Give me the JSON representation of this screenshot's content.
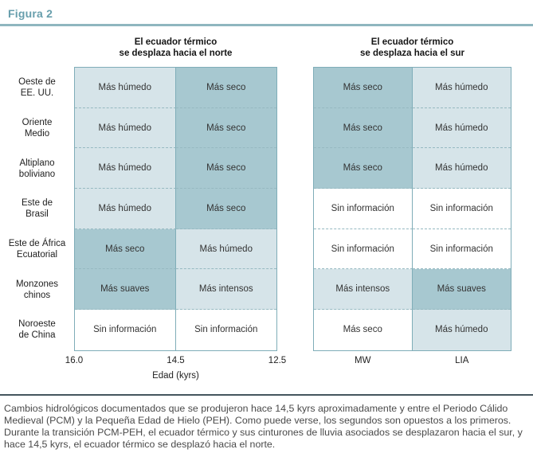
{
  "figure": {
    "label": "Figura 2",
    "caption": "Cambios hidrológicos documentados que se produjeron hace 14,5 kyrs aproximadamente y entre el Periodo Cálido Medieval (PCM) y la Pequeña Edad de Hielo (PEH). Como puede verse, los segundos son opuestos a los primeros. Durante la transición PCM-PEH, el ecuador térmico y sus cinturones de lluvia asociados se desplazaron hacia el sur, y hace 14,5 kyrs, el ecuador térmico se desplazó hacia el norte."
  },
  "panels": {
    "north": {
      "title_line1": "El ecuador térmico",
      "title_line2": "se desplaza hacia el norte",
      "ticks": [
        "16.0",
        "14.5",
        "12.5"
      ],
      "axis_label": "Edad (kyrs)"
    },
    "south": {
      "title_line1": "El ecuador térmico",
      "title_line2": "se desplaza hacia el sur",
      "ticks": [
        "MW",
        "LIA"
      ]
    }
  },
  "rows": [
    {
      "label1": "Oeste de",
      "label2": "EE. UU.",
      "north": [
        {
          "label": "Más húmedo",
          "shade": "light"
        },
        {
          "label": "Más seco",
          "shade": "dark"
        }
      ],
      "south": [
        {
          "label": "Más seco",
          "shade": "dark"
        },
        {
          "label": "Más húmedo",
          "shade": "light"
        }
      ]
    },
    {
      "label1": "Oriente",
      "label2": "Medio",
      "north": [
        {
          "label": "Más húmedo",
          "shade": "light"
        },
        {
          "label": "Más seco",
          "shade": "dark"
        }
      ],
      "south": [
        {
          "label": "Más seco",
          "shade": "dark"
        },
        {
          "label": "Más húmedo",
          "shade": "light"
        }
      ]
    },
    {
      "label1": "Altiplano",
      "label2": "boliviano",
      "north": [
        {
          "label": "Más húmedo",
          "shade": "light"
        },
        {
          "label": "Más seco",
          "shade": "dark"
        }
      ],
      "south": [
        {
          "label": "Más seco",
          "shade": "dark"
        },
        {
          "label": "Más húmedo",
          "shade": "light"
        }
      ]
    },
    {
      "label1": "Este de",
      "label2": "Brasil",
      "north": [
        {
          "label": "Más húmedo",
          "shade": "light"
        },
        {
          "label": "Más seco",
          "shade": "dark"
        }
      ],
      "south": [
        {
          "label": "Sin información",
          "shade": "none"
        },
        {
          "label": "Sin información",
          "shade": "none"
        }
      ]
    },
    {
      "label1": "Este de África",
      "label2": "Ecuatorial",
      "north": [
        {
          "label": "Más seco",
          "shade": "dark"
        },
        {
          "label": "Más húmedo",
          "shade": "light"
        }
      ],
      "south": [
        {
          "label": "Sin información",
          "shade": "none"
        },
        {
          "label": "Sin información",
          "shade": "none"
        }
      ]
    },
    {
      "label1": "Monzones",
      "label2": "chinos",
      "north": [
        {
          "label": "Más suaves",
          "shade": "dark"
        },
        {
          "label": "Más intensos",
          "shade": "light"
        }
      ],
      "south": [
        {
          "label": "Más intensos",
          "shade": "light"
        },
        {
          "label": "Más suaves",
          "shade": "dark"
        }
      ]
    },
    {
      "label1": "Noroeste",
      "label2": "de China",
      "north": [
        {
          "label": "Sin información",
          "shade": "none"
        },
        {
          "label": "Sin información",
          "shade": "none"
        }
      ],
      "south": [
        {
          "label": "Más seco",
          "shade": "none"
        },
        {
          "label": "Más húmedo",
          "shade": "light"
        }
      ]
    }
  ],
  "colors": {
    "accent_teal": "#679eac",
    "title_rule": "#8fb6bf",
    "cell_light": "#d6e4e9",
    "cell_dark": "#a7c8d0",
    "cell_none": "#ffffff",
    "table_border": "#7fadb8",
    "row_dash": "#96b9c1",
    "caption_rule": "#45565e"
  }
}
